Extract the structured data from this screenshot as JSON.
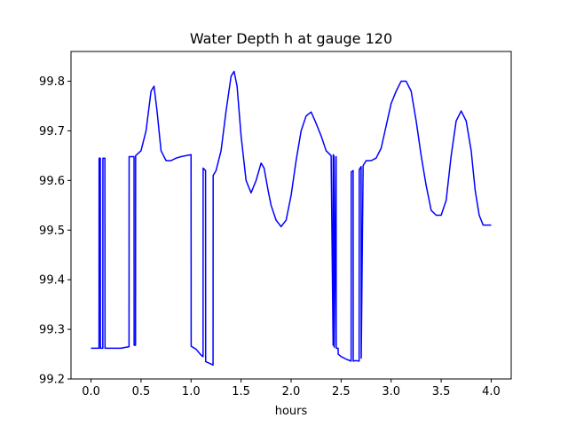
{
  "chart_data": {
    "type": "line",
    "title": "Water Depth h at gauge 120",
    "xlabel": "hours",
    "ylabel": "",
    "xlim": [
      -0.2,
      4.2
    ],
    "ylim": [
      99.2,
      99.86
    ],
    "xticks": [
      0.0,
      0.5,
      1.0,
      1.5,
      2.0,
      2.5,
      3.0,
      3.5,
      4.0
    ],
    "xtick_labels": [
      "0.0",
      "0.5",
      "1.0",
      "1.5",
      "2.0",
      "2.5",
      "3.0",
      "3.5",
      "4.0"
    ],
    "yticks": [
      99.2,
      99.3,
      99.4,
      99.5,
      99.6,
      99.7,
      99.8
    ],
    "ytick_labels": [
      "99.2",
      "99.3",
      "99.4",
      "99.5",
      "99.6",
      "99.7",
      "99.8"
    ],
    "grid": false,
    "series": [
      {
        "color": "#0000ff",
        "x": [
          0.0,
          0.08,
          0.081,
          0.093,
          0.094,
          0.118,
          0.119,
          0.139,
          0.14,
          0.2,
          0.3,
          0.38,
          0.381,
          0.43,
          0.431,
          0.445,
          0.446,
          0.5,
          0.55,
          0.6,
          0.63,
          0.66,
          0.7,
          0.75,
          0.8,
          0.85,
          0.9,
          0.95,
          1.0,
          1.001,
          1.05,
          1.1,
          1.12,
          1.121,
          1.145,
          1.146,
          1.2,
          1.22,
          1.221,
          1.25,
          1.3,
          1.35,
          1.4,
          1.43,
          1.46,
          1.5,
          1.55,
          1.6,
          1.65,
          1.7,
          1.73,
          1.77,
          1.8,
          1.85,
          1.9,
          1.95,
          2.0,
          2.05,
          2.1,
          2.15,
          2.2,
          2.24,
          2.3,
          2.35,
          2.4,
          2.42,
          2.421,
          2.43,
          2.431,
          2.45,
          2.451,
          2.47,
          2.471,
          2.5,
          2.55,
          2.6,
          2.601,
          2.62,
          2.621,
          2.65,
          2.68,
          2.681,
          2.7,
          2.701,
          2.72,
          2.75,
          2.8,
          2.85,
          2.9,
          2.95,
          3.0,
          3.05,
          3.1,
          3.15,
          3.2,
          3.25,
          3.3,
          3.35,
          3.4,
          3.45,
          3.5,
          3.55,
          3.6,
          3.65,
          3.7,
          3.75,
          3.8,
          3.84,
          3.88,
          3.92,
          3.96,
          4.0
        ],
        "y": [
          99.262,
          99.262,
          99.645,
          99.645,
          99.262,
          99.262,
          99.645,
          99.645,
          99.262,
          99.262,
          99.262,
          99.265,
          99.648,
          99.648,
          99.268,
          99.268,
          99.65,
          99.66,
          99.7,
          99.78,
          99.79,
          99.74,
          99.66,
          99.64,
          99.64,
          99.645,
          99.648,
          99.65,
          99.652,
          99.266,
          99.26,
          99.248,
          99.245,
          99.625,
          99.62,
          99.235,
          99.23,
          99.228,
          99.61,
          99.62,
          99.66,
          99.74,
          99.81,
          99.82,
          99.79,
          99.69,
          99.6,
          99.575,
          99.6,
          99.635,
          99.625,
          99.58,
          99.55,
          99.52,
          99.507,
          99.52,
          99.57,
          99.64,
          99.7,
          99.73,
          99.738,
          99.72,
          99.69,
          99.66,
          99.65,
          99.268,
          99.652,
          99.648,
          99.264,
          99.648,
          99.262,
          99.262,
          99.25,
          99.245,
          99.24,
          99.236,
          99.617,
          99.62,
          99.236,
          99.237,
          99.236,
          99.622,
          99.628,
          99.242,
          99.63,
          99.64,
          99.64,
          99.645,
          99.665,
          99.71,
          99.755,
          99.78,
          99.8,
          99.8,
          99.78,
          99.72,
          99.65,
          99.59,
          99.54,
          99.53,
          99.53,
          99.56,
          99.65,
          99.72,
          99.74,
          99.72,
          99.66,
          99.58,
          99.53,
          99.51,
          99.51,
          99.51
        ]
      }
    ]
  }
}
